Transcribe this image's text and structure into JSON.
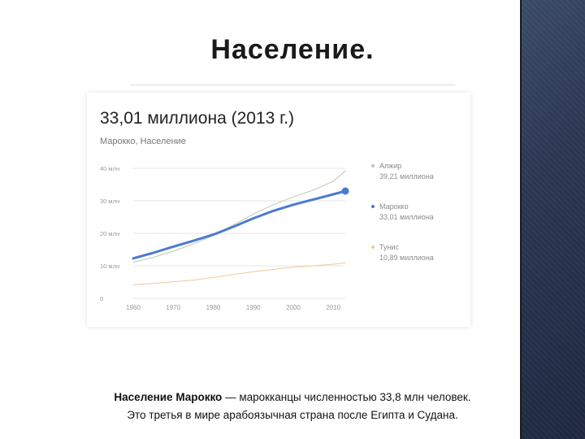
{
  "slide": {
    "title": "Население.",
    "caption_bold": "Население Марокко",
    "caption_rest": " — марокканцы численностью 33,8 млн человек.",
    "caption_line2": "Это третья в мире арабоязычная страна после Египта и Судана."
  },
  "card": {
    "value": "33,01 миллиона (2013 г.)",
    "subtitle": "Марокко, Население"
  },
  "chart_data": {
    "type": "line",
    "x": [
      1960,
      1965,
      1970,
      1975,
      1980,
      1985,
      1990,
      1995,
      2000,
      2005,
      2010,
      2013
    ],
    "x_ticks": [
      "1960",
      "1970",
      "1980",
      "1990",
      "2000",
      "2010"
    ],
    "y_ticks": [
      "0",
      "10 млн",
      "20 млн",
      "30 млн",
      "40 млн"
    ],
    "ylim": [
      0,
      40
    ],
    "xlim": [
      1960,
      2013
    ],
    "grid": true,
    "legend_position": "right",
    "series": [
      {
        "name": "Алжир",
        "value_label": "39,21 миллиона",
        "color": "#b9c9b0",
        "values": [
          11.1,
          12.6,
          14.5,
          16.7,
          19.3,
          22.6,
          25.9,
          28.8,
          31.2,
          33.3,
          36.0,
          39.2
        ]
      },
      {
        "name": "Марокко",
        "value_label": "33,01 миллиона",
        "color": "#4a7bd0",
        "values": [
          12.3,
          14.0,
          15.9,
          17.7,
          19.6,
          22.0,
          24.6,
          26.9,
          28.8,
          30.4,
          32.0,
          33.0
        ]
      },
      {
        "name": "Тунис",
        "value_label": "10,89 миллиона",
        "color": "#f2c79a",
        "values": [
          4.2,
          4.6,
          5.1,
          5.6,
          6.4,
          7.3,
          8.2,
          8.9,
          9.6,
          10.0,
          10.5,
          10.9
        ]
      }
    ]
  }
}
